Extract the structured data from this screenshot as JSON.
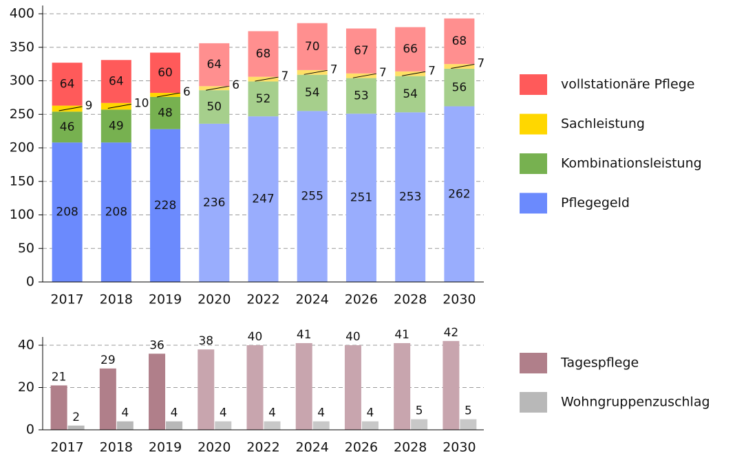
{
  "chart_data": [
    {
      "type": "bar",
      "stacked": true,
      "categories": [
        "2017",
        "2018",
        "2019",
        "2020",
        "2022",
        "2024",
        "2026",
        "2028",
        "2030"
      ],
      "series": [
        {
          "name": "Pflegegeld",
          "color": "#6b8afd",
          "colors": [
            "#6b8afd",
            "#6b8afd",
            "#6b8afd",
            "#99adfd",
            "#99adfd",
            "#99adfd",
            "#99adfd",
            "#99adfd",
            "#99adfd"
          ],
          "values": [
            208,
            208,
            228,
            236,
            247,
            255,
            251,
            253,
            262
          ]
        },
        {
          "name": "Kombinationsleistung",
          "color": "#77b150",
          "colors": [
            "#77b150",
            "#77b150",
            "#77b150",
            "#a6cf8c",
            "#a6cf8c",
            "#a6cf8c",
            "#a6cf8c",
            "#a6cf8c",
            "#a6cf8c"
          ],
          "values": [
            46,
            49,
            48,
            50,
            52,
            54,
            53,
            54,
            56
          ]
        },
        {
          "name": "Sachleistung",
          "color": "#ffd700",
          "colors": [
            "#ffd700",
            "#ffd700",
            "#ffd700",
            "#ffe066",
            "#ffe066",
            "#ffe066",
            "#ffe066",
            "#ffe066",
            "#ffe066"
          ],
          "values": [
            9,
            10,
            6,
            6,
            7,
            7,
            7,
            7,
            7
          ]
        },
        {
          "name": "vollstationäre Pflege",
          "color": "#ff5a5a",
          "colors": [
            "#ff5a5a",
            "#ff5a5a",
            "#ff5a5a",
            "#ff8f8f",
            "#ff8f8f",
            "#ff8f8f",
            "#ff8f8f",
            "#ff8f8f",
            "#ff8f8f"
          ],
          "values": [
            64,
            64,
            60,
            64,
            68,
            70,
            67,
            66,
            68
          ]
        }
      ],
      "ylim": [
        0,
        400
      ],
      "yticks": [
        0,
        50,
        100,
        150,
        200,
        250,
        300,
        350,
        400
      ],
      "grid": true,
      "legend": "right"
    },
    {
      "type": "bar",
      "stacked": false,
      "categories": [
        "2017",
        "2018",
        "2019",
        "2020",
        "2022",
        "2024",
        "2026",
        "2028",
        "2030"
      ],
      "series": [
        {
          "name": "Tagespflege",
          "color": "#b07f8a",
          "colors": [
            "#b07f8a",
            "#b07f8a",
            "#b07f8a",
            "#c8a5ae",
            "#c8a5ae",
            "#c8a5ae",
            "#c8a5ae",
            "#c8a5ae",
            "#c8a5ae"
          ],
          "values": [
            21,
            29,
            36,
            38,
            40,
            41,
            40,
            41,
            42
          ]
        },
        {
          "name": "Wohngruppenzuschlag",
          "color": "#b8b8b8",
          "colors": [
            "#b8b8b8",
            "#b8b8b8",
            "#b8b8b8",
            "#c8c8c8",
            "#c8c8c8",
            "#c8c8c8",
            "#c8c8c8",
            "#c8c8c8",
            "#c8c8c8"
          ],
          "values": [
            2,
            4,
            4,
            4,
            4,
            4,
            4,
            5,
            5
          ]
        }
      ],
      "ylim": [
        0,
        40
      ],
      "yticks": [
        0,
        20,
        40
      ],
      "grid": true,
      "legend": "right"
    }
  ]
}
